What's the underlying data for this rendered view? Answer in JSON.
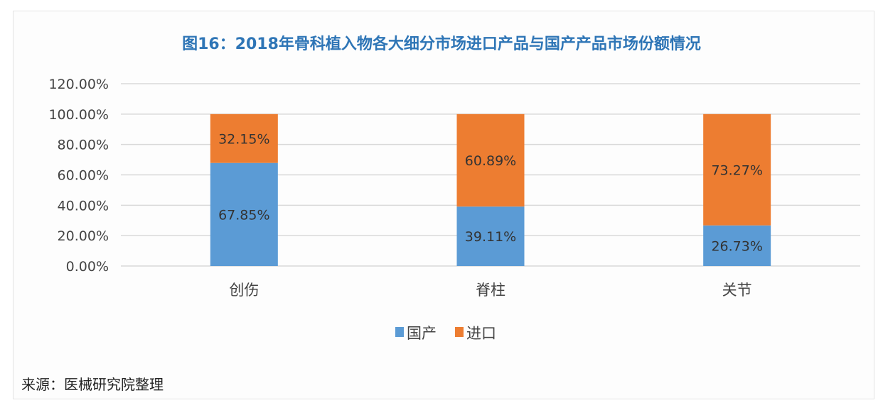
{
  "chart_data": {
    "type": "bar",
    "stacked": true,
    "title": "图16：2018年骨科植入物各大细分市场进口产品与国产产品市场份额情况",
    "categories": [
      "创伤",
      "脊柱",
      "关节"
    ],
    "series": [
      {
        "name": "国产",
        "color": "#5b9bd5",
        "values": [
          67.85,
          39.11,
          26.73
        ],
        "labels": [
          "67.85%",
          "39.11%",
          "26.73%"
        ]
      },
      {
        "name": "进口",
        "color": "#ed7d31",
        "values": [
          32.15,
          60.89,
          73.27
        ],
        "labels": [
          "32.15%",
          "60.89%",
          "73.27%"
        ]
      }
    ],
    "ylim": [
      0,
      120
    ],
    "yticks": [
      "0.00%",
      "20.00%",
      "40.00%",
      "60.00%",
      "80.00%",
      "100.00%",
      "120.00%"
    ],
    "xlabel": "",
    "ylabel": "",
    "grid": true,
    "legend_position": "bottom"
  },
  "source": "来源：医械研究院整理"
}
